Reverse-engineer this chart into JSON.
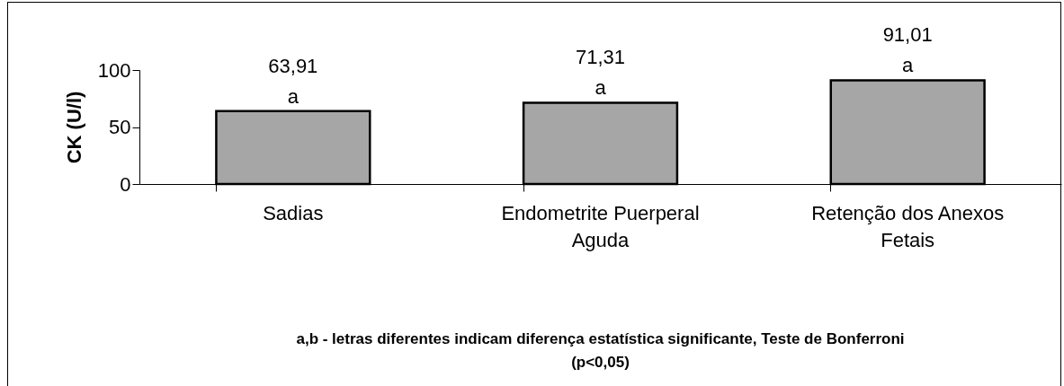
{
  "chart_data": {
    "type": "bar",
    "ylabel": "CK (U/l)",
    "categories": [
      "Sadias",
      "Endometrite Puerperal Aguda",
      "Retenção dos Anexos Fetais"
    ],
    "values": [
      63.91,
      71.31,
      91.01
    ],
    "color": "#a6a6a6",
    "value_labels": [
      "63,91",
      "71,31",
      "91,01"
    ],
    "ylim": [
      0,
      100
    ],
    "yticks": [
      0,
      50,
      100
    ],
    "grid": false,
    "annotations": [
      {
        "text": "a",
        "x": "Sadias",
        "y": 63.91
      },
      {
        "text": "a",
        "x": "Endometrite Puerperal Aguda",
        "y": 71.31
      },
      {
        "text": "a",
        "x": "Retenção dos Anexos Fetais",
        "y": 91.01
      },
      "a,b - letras diferentes indicam diferença estatística significante, Teste de Bonferroni (p<0,05)"
    ]
  }
}
